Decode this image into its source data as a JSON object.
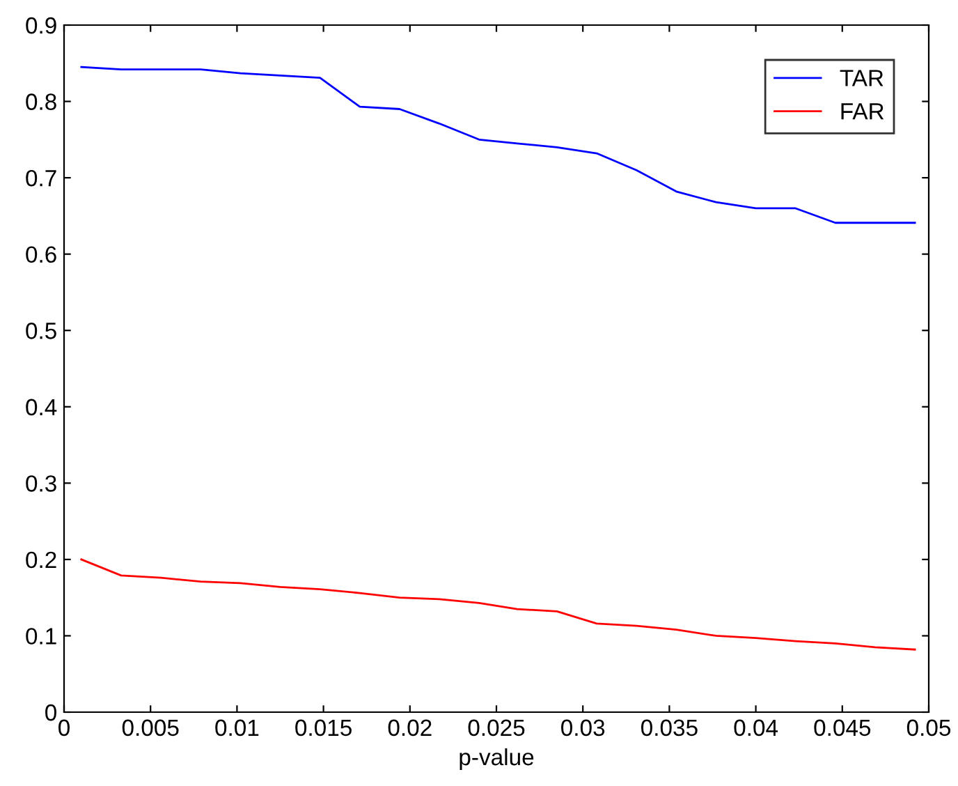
{
  "chart_data": {
    "type": "line",
    "xlabel": "p-value",
    "x": [
      0.001,
      0.0033,
      0.0056,
      0.0079,
      0.0102,
      0.0125,
      0.0148,
      0.0171,
      0.0194,
      0.0217,
      0.024,
      0.0262,
      0.0285,
      0.0308,
      0.0331,
      0.0354,
      0.0377,
      0.04,
      0.0423,
      0.0446,
      0.0469,
      0.0492
    ],
    "series": [
      {
        "name": "TAR",
        "color": "#0000ff",
        "values": [
          0.845,
          0.842,
          0.842,
          0.842,
          0.837,
          0.834,
          0.831,
          0.793,
          0.79,
          0.771,
          0.75,
          0.745,
          0.74,
          0.732,
          0.71,
          0.682,
          0.668,
          0.66,
          0.66,
          0.641,
          0.641,
          0.641
        ]
      },
      {
        "name": "FAR",
        "color": "#ff0000",
        "values": [
          0.2,
          0.179,
          0.176,
          0.171,
          0.169,
          0.164,
          0.161,
          0.156,
          0.15,
          0.148,
          0.143,
          0.135,
          0.132,
          0.116,
          0.113,
          0.108,
          0.1,
          0.097,
          0.093,
          0.09,
          0.085,
          0.082
        ]
      }
    ],
    "xlim": [
      0,
      0.05
    ],
    "xticks": [
      0,
      0.005,
      0.01,
      0.015,
      0.02,
      0.025,
      0.03,
      0.035,
      0.04,
      0.045,
      0.05
    ],
    "ylim": [
      0,
      0.9
    ],
    "yticks": [
      0,
      0.1,
      0.2,
      0.3,
      0.4,
      0.5,
      0.6,
      0.7,
      0.8,
      0.9
    ],
    "grid": false,
    "legend": "top right"
  }
}
